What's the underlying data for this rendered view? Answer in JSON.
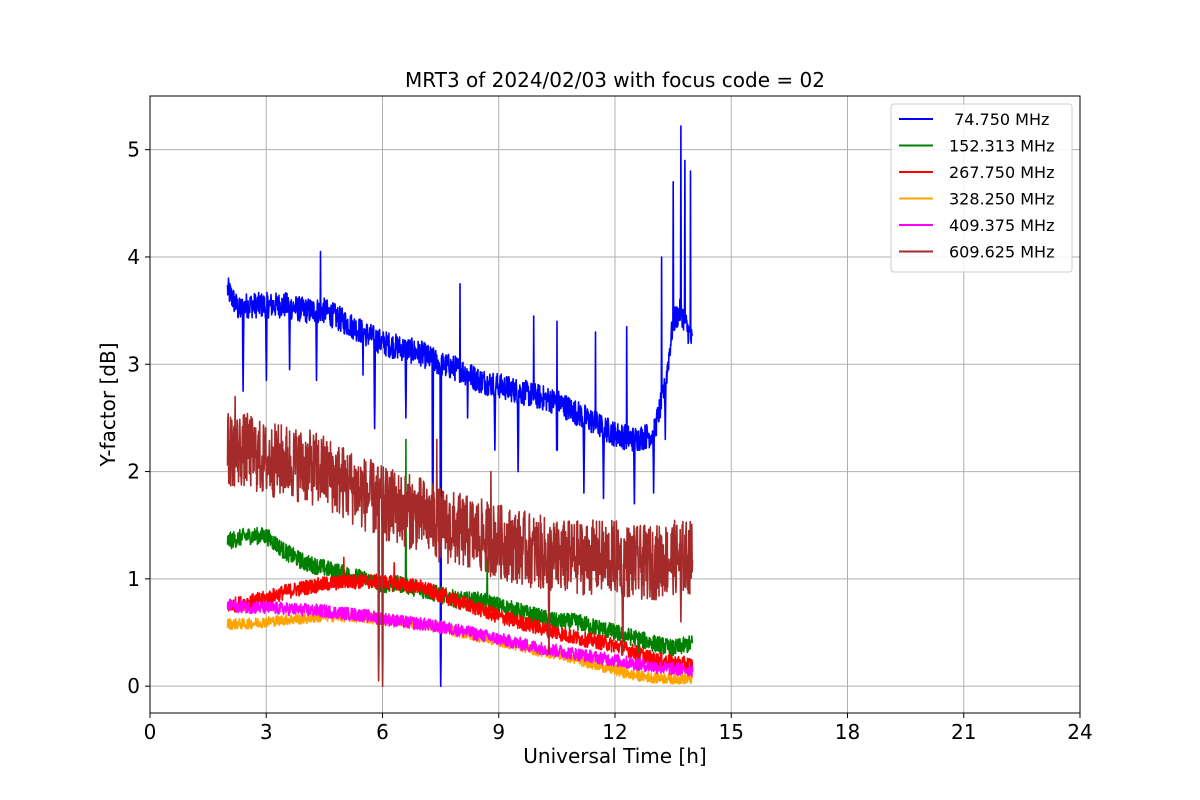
{
  "chart_data": {
    "type": "line",
    "title": "MRT3 of 2024/02/03 with focus code = 02",
    "xlabel": "Universal Time [h]",
    "ylabel": "Y-factor [dB]",
    "xlim": [
      0,
      24
    ],
    "ylim": [
      -0.25,
      5.5
    ],
    "xticks": [
      0,
      3,
      6,
      9,
      12,
      15,
      18,
      21,
      24
    ],
    "xtick_labels": [
      "0",
      "3",
      "6",
      "9",
      "12",
      "15",
      "18",
      "21",
      "24"
    ],
    "yticks": [
      0,
      1,
      2,
      3,
      4,
      5
    ],
    "ytick_labels": [
      "0",
      "1",
      "2",
      "3",
      "4",
      "5"
    ],
    "grid": true,
    "legend_position": "top-right",
    "series": [
      {
        "name": " 74.750 MHz",
        "color": "#0000ff",
        "x": [
          2.0,
          2.3,
          2.5,
          3.0,
          3.5,
          4.0,
          4.5,
          5.0,
          5.5,
          6.0,
          6.5,
          7.0,
          7.5,
          8.0,
          8.5,
          9.0,
          9.5,
          10.0,
          10.5,
          11.0,
          11.5,
          12.0,
          12.5,
          13.0,
          13.3,
          13.5,
          13.7,
          14.0
        ],
        "y": [
          3.7,
          3.5,
          3.55,
          3.55,
          3.55,
          3.5,
          3.5,
          3.4,
          3.3,
          3.2,
          3.15,
          3.1,
          3.0,
          2.95,
          2.85,
          2.8,
          2.75,
          2.7,
          2.65,
          2.55,
          2.45,
          2.35,
          2.3,
          2.35,
          2.8,
          3.4,
          3.5,
          3.2
        ],
        "noise": 0.12,
        "dips": [
          [
            2.4,
            2.75
          ],
          [
            3.0,
            2.85
          ],
          [
            3.6,
            2.95
          ],
          [
            4.3,
            2.85
          ],
          [
            5.5,
            2.9
          ],
          [
            5.8,
            2.4
          ],
          [
            6.6,
            2.5
          ],
          [
            7.3,
            1.6
          ],
          [
            7.5,
            0.0
          ],
          [
            8.2,
            2.5
          ],
          [
            8.9,
            2.2
          ],
          [
            9.5,
            2.0
          ],
          [
            10.5,
            1.9
          ],
          [
            11.2,
            1.8
          ],
          [
            11.7,
            1.75
          ],
          [
            12.5,
            1.7
          ],
          [
            13.0,
            1.8
          ],
          [
            13.3,
            2.3
          ]
        ],
        "spikes": [
          [
            4.4,
            4.05
          ],
          [
            8.0,
            3.75
          ],
          [
            9.9,
            3.45
          ],
          [
            10.5,
            3.4
          ],
          [
            11.5,
            3.3
          ],
          [
            12.3,
            3.35
          ],
          [
            13.2,
            4.0
          ],
          [
            13.5,
            4.7
          ],
          [
            13.7,
            5.22
          ],
          [
            13.8,
            4.9
          ],
          [
            13.95,
            4.8
          ]
        ]
      },
      {
        "name": "152.313 MHz",
        "color": "#008000",
        "x": [
          2.0,
          2.5,
          3.0,
          3.5,
          4.0,
          4.5,
          5.0,
          5.5,
          6.0,
          6.5,
          7.0,
          7.5,
          8.0,
          8.5,
          9.0,
          9.5,
          10.0,
          10.5,
          11.0,
          11.5,
          12.0,
          12.5,
          13.0,
          13.5,
          14.0
        ],
        "y": [
          1.35,
          1.4,
          1.4,
          1.25,
          1.15,
          1.1,
          1.05,
          1.0,
          0.95,
          0.95,
          0.9,
          0.85,
          0.8,
          0.8,
          0.75,
          0.7,
          0.65,
          0.6,
          0.6,
          0.55,
          0.5,
          0.45,
          0.4,
          0.35,
          0.4
        ],
        "noise": 0.08,
        "dips": [
          [
            12.6,
            0.1
          ]
        ],
        "spikes": [
          [
            6.6,
            2.3
          ],
          [
            8.7,
            1.2
          ]
        ]
      },
      {
        "name": "267.750 MHz",
        "color": "#ff0000",
        "x": [
          2.0,
          2.5,
          3.0,
          3.5,
          4.0,
          4.5,
          5.0,
          5.5,
          6.0,
          6.5,
          7.0,
          7.5,
          8.0,
          8.5,
          9.0,
          9.5,
          10.0,
          10.5,
          11.0,
          11.5,
          12.0,
          12.5,
          13.0,
          13.5,
          14.0
        ],
        "y": [
          0.75,
          0.78,
          0.82,
          0.88,
          0.92,
          0.95,
          0.97,
          0.98,
          0.97,
          0.95,
          0.92,
          0.85,
          0.78,
          0.72,
          0.65,
          0.6,
          0.55,
          0.5,
          0.45,
          0.42,
          0.38,
          0.32,
          0.25,
          0.22,
          0.2
        ],
        "noise": 0.07,
        "dips": [],
        "spikes": [
          [
            5.0,
            1.2
          ],
          [
            6.3,
            1.15
          ]
        ]
      },
      {
        "name": "328.250 MHz",
        "color": "#ffa500",
        "x": [
          2.0,
          2.5,
          3.0,
          3.5,
          4.0,
          4.5,
          5.0,
          5.5,
          6.0,
          6.5,
          7.0,
          7.5,
          8.0,
          8.5,
          9.0,
          9.5,
          10.0,
          10.5,
          11.0,
          11.5,
          12.0,
          12.5,
          13.0,
          13.5,
          14.0
        ],
        "y": [
          0.58,
          0.58,
          0.6,
          0.62,
          0.63,
          0.65,
          0.65,
          0.64,
          0.62,
          0.6,
          0.58,
          0.55,
          0.5,
          0.46,
          0.42,
          0.38,
          0.33,
          0.3,
          0.25,
          0.2,
          0.15,
          0.1,
          0.08,
          0.07,
          0.07
        ],
        "noise": 0.05,
        "dips": [],
        "spikes": []
      },
      {
        "name": "409.375 MHz",
        "color": "#ff00ff",
        "x": [
          2.0,
          2.5,
          3.0,
          3.5,
          4.0,
          4.5,
          5.0,
          5.5,
          6.0,
          6.5,
          7.0,
          7.5,
          8.0,
          8.5,
          9.0,
          9.5,
          10.0,
          10.5,
          11.0,
          11.5,
          12.0,
          12.5,
          13.0,
          13.5,
          14.0
        ],
        "y": [
          0.75,
          0.74,
          0.73,
          0.72,
          0.71,
          0.7,
          0.68,
          0.66,
          0.63,
          0.6,
          0.58,
          0.55,
          0.52,
          0.48,
          0.44,
          0.4,
          0.36,
          0.33,
          0.3,
          0.27,
          0.24,
          0.21,
          0.18,
          0.16,
          0.15
        ],
        "noise": 0.06,
        "dips": [],
        "spikes": []
      },
      {
        "name": "609.625 MHz",
        "color": "#a52a2a",
        "x": [
          2.0,
          2.5,
          3.0,
          3.5,
          4.0,
          4.5,
          5.0,
          5.5,
          6.0,
          6.5,
          7.0,
          7.5,
          8.0,
          8.5,
          9.0,
          9.5,
          10.0,
          10.5,
          11.0,
          11.5,
          12.0,
          12.5,
          13.0,
          13.5,
          14.0
        ],
        "y": [
          2.2,
          2.2,
          2.1,
          2.1,
          2.05,
          2.0,
          1.9,
          1.8,
          1.7,
          1.65,
          1.6,
          1.5,
          1.45,
          1.4,
          1.35,
          1.3,
          1.25,
          1.2,
          1.2,
          1.2,
          1.2,
          1.15,
          1.15,
          1.2,
          1.2
        ],
        "noise": 0.35,
        "dips": [
          [
            6.0,
            0.0
          ],
          [
            5.9,
            0.05
          ],
          [
            10.3,
            0.3
          ],
          [
            12.2,
            0.3
          ],
          [
            13.7,
            0.6
          ]
        ],
        "spikes": [
          [
            2.2,
            2.7
          ],
          [
            7.4,
            2.3
          ],
          [
            8.8,
            2.0
          ]
        ]
      }
    ]
  }
}
